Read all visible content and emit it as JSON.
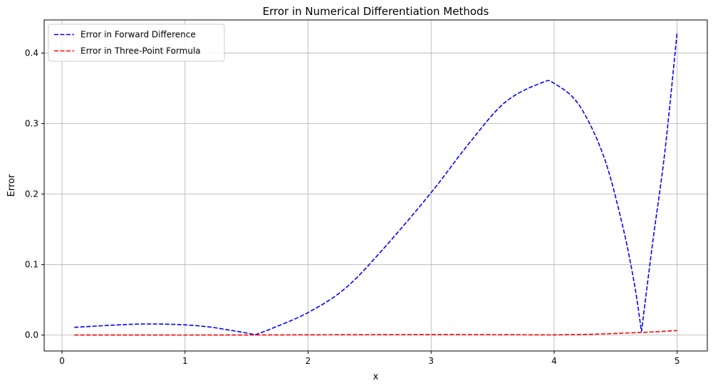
{
  "chart_data": {
    "type": "line",
    "title": "Error in Numerical Differentiation Methods",
    "xlabel": "x",
    "ylabel": "Error",
    "xlim": [
      -0.145,
      5.245
    ],
    "ylim": [
      -0.0225,
      0.447
    ],
    "xticks": [
      0,
      1,
      2,
      3,
      4,
      5
    ],
    "yticks": [
      0.0,
      0.1,
      0.2,
      0.3,
      0.4
    ],
    "ytick_labels": [
      "0.0",
      "0.1",
      "0.2",
      "0.3",
      "0.4"
    ],
    "grid": true,
    "legend_position": "top-left",
    "series": [
      {
        "name": "Error in Forward Difference",
        "color": "#0000ff",
        "style": "dashed",
        "x": [
          0.1,
          0.4,
          0.6,
          0.8,
          1.0,
          1.2,
          1.4,
          1.5,
          1.57,
          1.7,
          2.0,
          2.3,
          2.6,
          3.0,
          3.3,
          3.6,
          3.9,
          4.0,
          4.2,
          4.4,
          4.55,
          4.65,
          4.71,
          4.8,
          4.9,
          5.0
        ],
        "y": [
          0.011,
          0.014,
          0.0155,
          0.0157,
          0.0145,
          0.0115,
          0.006,
          0.003,
          0.0005,
          0.009,
          0.032,
          0.066,
          0.12,
          0.202,
          0.27,
          0.33,
          0.358,
          0.357,
          0.327,
          0.255,
          0.16,
          0.075,
          0.005,
          0.13,
          0.26,
          0.43
        ]
      },
      {
        "name": "Error in Three-Point Formula",
        "color": "#ff0000",
        "style": "dashed",
        "x": [
          0.1,
          0.5,
          1.0,
          1.5,
          2.0,
          2.5,
          3.0,
          3.5,
          4.0,
          4.3,
          4.6,
          4.8,
          5.0
        ],
        "y": [
          0.0002,
          0.00015,
          0.0001,
          0.0002,
          0.0004,
          0.0006,
          0.0008,
          0.0006,
          0.0003,
          0.0012,
          0.003,
          0.0045,
          0.0065
        ]
      }
    ]
  }
}
